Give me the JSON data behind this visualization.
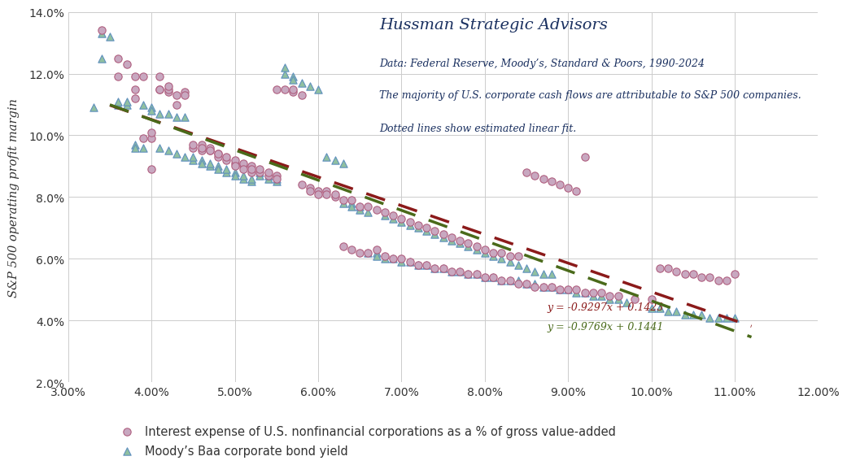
{
  "title_main": "Hussman Strategic Advisors",
  "title_sub1": "Data: Federal Reserve, Moody’s, Standard & Poors, 1990-2024",
  "title_sub2": "The majority of U.S. corporate cash flows are attributable to S&P 500 companies.",
  "title_sub3": "Dotted lines show estimated linear fit.",
  "ylabel": "S&P 500 operating profit margin",
  "xlim": [
    0.03,
    0.12
  ],
  "ylim": [
    0.02,
    0.14
  ],
  "xticks": [
    0.03,
    0.04,
    0.05,
    0.06,
    0.07,
    0.08,
    0.09,
    0.1,
    0.11,
    0.12
  ],
  "yticks": [
    0.02,
    0.04,
    0.06,
    0.08,
    0.1,
    0.12,
    0.14
  ],
  "circle_slope": -0.9297,
  "circle_intercept": 0.1423,
  "triangle_slope": -0.9769,
  "triangle_intercept": 0.1441,
  "circle_color": "#c8a8c0",
  "circle_edge": "#b06080",
  "triangle_color": "#90c0a0",
  "triangle_edge": "#6090c0",
  "line_circle_color": "#8b1a1a",
  "line_triangle_color": "#4a6a1a",
  "eq_circle": "y = -0.9297x + 0.1423",
  "eq_triangle": "y = -0.9769x + 0.1441",
  "legend_circle": "Interest expense of U.S. nonfinancial corporations as a % of gross value-added",
  "legend_triangle": "Moody’s Baa corporate bond yield",
  "circle_data": [
    [
      0.034,
      0.134
    ],
    [
      0.036,
      0.125
    ],
    [
      0.036,
      0.119
    ],
    [
      0.037,
      0.123
    ],
    [
      0.038,
      0.119
    ],
    [
      0.038,
      0.115
    ],
    [
      0.038,
      0.112
    ],
    [
      0.039,
      0.099
    ],
    [
      0.039,
      0.119
    ],
    [
      0.04,
      0.099
    ],
    [
      0.04,
      0.101
    ],
    [
      0.04,
      0.089
    ],
    [
      0.041,
      0.119
    ],
    [
      0.041,
      0.115
    ],
    [
      0.041,
      0.115
    ],
    [
      0.042,
      0.114
    ],
    [
      0.042,
      0.115
    ],
    [
      0.042,
      0.116
    ],
    [
      0.043,
      0.113
    ],
    [
      0.043,
      0.11
    ],
    [
      0.044,
      0.114
    ],
    [
      0.044,
      0.113
    ],
    [
      0.045,
      0.096
    ],
    [
      0.045,
      0.097
    ],
    [
      0.046,
      0.097
    ],
    [
      0.046,
      0.095
    ],
    [
      0.046,
      0.096
    ],
    [
      0.047,
      0.095
    ],
    [
      0.047,
      0.096
    ],
    [
      0.047,
      0.095
    ],
    [
      0.048,
      0.094
    ],
    [
      0.048,
      0.093
    ],
    [
      0.048,
      0.094
    ],
    [
      0.049,
      0.092
    ],
    [
      0.049,
      0.093
    ],
    [
      0.05,
      0.091
    ],
    [
      0.05,
      0.092
    ],
    [
      0.05,
      0.09
    ],
    [
      0.051,
      0.09
    ],
    [
      0.051,
      0.091
    ],
    [
      0.051,
      0.089
    ],
    [
      0.052,
      0.088
    ],
    [
      0.052,
      0.09
    ],
    [
      0.052,
      0.089
    ],
    [
      0.053,
      0.088
    ],
    [
      0.053,
      0.089
    ],
    [
      0.054,
      0.087
    ],
    [
      0.054,
      0.088
    ],
    [
      0.055,
      0.087
    ],
    [
      0.055,
      0.086
    ],
    [
      0.055,
      0.115
    ],
    [
      0.056,
      0.115
    ],
    [
      0.057,
      0.114
    ],
    [
      0.057,
      0.115
    ],
    [
      0.058,
      0.113
    ],
    [
      0.058,
      0.084
    ],
    [
      0.059,
      0.083
    ],
    [
      0.059,
      0.082
    ],
    [
      0.06,
      0.082
    ],
    [
      0.06,
      0.081
    ],
    [
      0.061,
      0.082
    ],
    [
      0.061,
      0.081
    ],
    [
      0.062,
      0.08
    ],
    [
      0.062,
      0.081
    ],
    [
      0.063,
      0.079
    ],
    [
      0.063,
      0.064
    ],
    [
      0.064,
      0.079
    ],
    [
      0.064,
      0.063
    ],
    [
      0.065,
      0.077
    ],
    [
      0.065,
      0.062
    ],
    [
      0.066,
      0.077
    ],
    [
      0.066,
      0.062
    ],
    [
      0.067,
      0.076
    ],
    [
      0.067,
      0.063
    ],
    [
      0.068,
      0.075
    ],
    [
      0.068,
      0.061
    ],
    [
      0.069,
      0.074
    ],
    [
      0.069,
      0.06
    ],
    [
      0.07,
      0.073
    ],
    [
      0.07,
      0.06
    ],
    [
      0.071,
      0.072
    ],
    [
      0.071,
      0.059
    ],
    [
      0.072,
      0.071
    ],
    [
      0.072,
      0.058
    ],
    [
      0.073,
      0.07
    ],
    [
      0.073,
      0.058
    ],
    [
      0.074,
      0.069
    ],
    [
      0.074,
      0.057
    ],
    [
      0.075,
      0.068
    ],
    [
      0.075,
      0.057
    ],
    [
      0.076,
      0.067
    ],
    [
      0.076,
      0.056
    ],
    [
      0.077,
      0.066
    ],
    [
      0.077,
      0.056
    ],
    [
      0.078,
      0.065
    ],
    [
      0.078,
      0.055
    ],
    [
      0.079,
      0.064
    ],
    [
      0.079,
      0.055
    ],
    [
      0.08,
      0.063
    ],
    [
      0.08,
      0.054
    ],
    [
      0.081,
      0.062
    ],
    [
      0.081,
      0.054
    ],
    [
      0.082,
      0.062
    ],
    [
      0.082,
      0.053
    ],
    [
      0.083,
      0.061
    ],
    [
      0.083,
      0.053
    ],
    [
      0.084,
      0.061
    ],
    [
      0.084,
      0.052
    ],
    [
      0.085,
      0.088
    ],
    [
      0.085,
      0.052
    ],
    [
      0.086,
      0.087
    ],
    [
      0.086,
      0.051
    ],
    [
      0.087,
      0.086
    ],
    [
      0.087,
      0.051
    ],
    [
      0.088,
      0.085
    ],
    [
      0.088,
      0.051
    ],
    [
      0.089,
      0.084
    ],
    [
      0.089,
      0.05
    ],
    [
      0.09,
      0.083
    ],
    [
      0.09,
      0.05
    ],
    [
      0.091,
      0.082
    ],
    [
      0.091,
      0.05
    ],
    [
      0.092,
      0.093
    ],
    [
      0.092,
      0.049
    ],
    [
      0.093,
      0.049
    ],
    [
      0.094,
      0.049
    ],
    [
      0.095,
      0.048
    ],
    [
      0.096,
      0.048
    ],
    [
      0.098,
      0.047
    ],
    [
      0.1,
      0.047
    ],
    [
      0.101,
      0.057
    ],
    [
      0.102,
      0.057
    ],
    [
      0.103,
      0.056
    ],
    [
      0.104,
      0.055
    ],
    [
      0.105,
      0.055
    ],
    [
      0.106,
      0.054
    ],
    [
      0.107,
      0.054
    ],
    [
      0.108,
      0.053
    ],
    [
      0.109,
      0.053
    ],
    [
      0.11,
      0.055
    ]
  ],
  "triangle_data": [
    [
      0.033,
      0.109
    ],
    [
      0.034,
      0.125
    ],
    [
      0.034,
      0.133
    ],
    [
      0.035,
      0.132
    ],
    [
      0.036,
      0.11
    ],
    [
      0.036,
      0.111
    ],
    [
      0.037,
      0.11
    ],
    [
      0.037,
      0.111
    ],
    [
      0.038,
      0.097
    ],
    [
      0.038,
      0.096
    ],
    [
      0.039,
      0.096
    ],
    [
      0.039,
      0.11
    ],
    [
      0.04,
      0.109
    ],
    [
      0.04,
      0.108
    ],
    [
      0.041,
      0.107
    ],
    [
      0.041,
      0.096
    ],
    [
      0.042,
      0.095
    ],
    [
      0.042,
      0.107
    ],
    [
      0.043,
      0.094
    ],
    [
      0.043,
      0.106
    ],
    [
      0.044,
      0.093
    ],
    [
      0.044,
      0.106
    ],
    [
      0.045,
      0.092
    ],
    [
      0.045,
      0.093
    ],
    [
      0.046,
      0.092
    ],
    [
      0.046,
      0.091
    ],
    [
      0.047,
      0.09
    ],
    [
      0.047,
      0.091
    ],
    [
      0.048,
      0.09
    ],
    [
      0.048,
      0.089
    ],
    [
      0.049,
      0.088
    ],
    [
      0.049,
      0.089
    ],
    [
      0.05,
      0.088
    ],
    [
      0.05,
      0.087
    ],
    [
      0.051,
      0.086
    ],
    [
      0.051,
      0.087
    ],
    [
      0.052,
      0.085
    ],
    [
      0.052,
      0.086
    ],
    [
      0.053,
      0.088
    ],
    [
      0.053,
      0.087
    ],
    [
      0.054,
      0.086
    ],
    [
      0.054,
      0.087
    ],
    [
      0.055,
      0.085
    ],
    [
      0.055,
      0.086
    ],
    [
      0.056,
      0.12
    ],
    [
      0.056,
      0.122
    ],
    [
      0.057,
      0.119
    ],
    [
      0.057,
      0.118
    ],
    [
      0.058,
      0.117
    ],
    [
      0.059,
      0.116
    ],
    [
      0.06,
      0.115
    ],
    [
      0.061,
      0.093
    ],
    [
      0.062,
      0.092
    ],
    [
      0.063,
      0.091
    ],
    [
      0.063,
      0.078
    ],
    [
      0.064,
      0.078
    ],
    [
      0.064,
      0.077
    ],
    [
      0.065,
      0.077
    ],
    [
      0.065,
      0.076
    ],
    [
      0.066,
      0.075
    ],
    [
      0.066,
      0.062
    ],
    [
      0.067,
      0.062
    ],
    [
      0.067,
      0.061
    ],
    [
      0.068,
      0.074
    ],
    [
      0.068,
      0.06
    ],
    [
      0.069,
      0.073
    ],
    [
      0.069,
      0.06
    ],
    [
      0.07,
      0.072
    ],
    [
      0.07,
      0.059
    ],
    [
      0.071,
      0.071
    ],
    [
      0.071,
      0.059
    ],
    [
      0.072,
      0.07
    ],
    [
      0.072,
      0.058
    ],
    [
      0.073,
      0.069
    ],
    [
      0.073,
      0.058
    ],
    [
      0.074,
      0.068
    ],
    [
      0.074,
      0.057
    ],
    [
      0.075,
      0.067
    ],
    [
      0.075,
      0.057
    ],
    [
      0.076,
      0.066
    ],
    [
      0.076,
      0.056
    ],
    [
      0.077,
      0.065
    ],
    [
      0.077,
      0.056
    ],
    [
      0.078,
      0.064
    ],
    [
      0.078,
      0.055
    ],
    [
      0.079,
      0.063
    ],
    [
      0.079,
      0.055
    ],
    [
      0.08,
      0.054
    ],
    [
      0.08,
      0.062
    ],
    [
      0.081,
      0.054
    ],
    [
      0.081,
      0.061
    ],
    [
      0.082,
      0.06
    ],
    [
      0.082,
      0.053
    ],
    [
      0.083,
      0.059
    ],
    [
      0.083,
      0.053
    ],
    [
      0.084,
      0.058
    ],
    [
      0.084,
      0.053
    ],
    [
      0.085,
      0.057
    ],
    [
      0.085,
      0.052
    ],
    [
      0.086,
      0.056
    ],
    [
      0.086,
      0.052
    ],
    [
      0.087,
      0.055
    ],
    [
      0.087,
      0.051
    ],
    [
      0.088,
      0.055
    ],
    [
      0.088,
      0.051
    ],
    [
      0.089,
      0.05
    ],
    [
      0.09,
      0.05
    ],
    [
      0.091,
      0.049
    ],
    [
      0.092,
      0.049
    ],
    [
      0.093,
      0.048
    ],
    [
      0.094,
      0.048
    ],
    [
      0.095,
      0.047
    ],
    [
      0.096,
      0.047
    ],
    [
      0.097,
      0.046
    ],
    [
      0.1,
      0.044
    ],
    [
      0.101,
      0.044
    ],
    [
      0.102,
      0.043
    ],
    [
      0.103,
      0.043
    ],
    [
      0.104,
      0.042
    ],
    [
      0.105,
      0.042
    ],
    [
      0.106,
      0.042
    ],
    [
      0.107,
      0.041
    ],
    [
      0.108,
      0.041
    ],
    [
      0.109,
      0.041
    ],
    [
      0.11,
      0.041
    ]
  ]
}
